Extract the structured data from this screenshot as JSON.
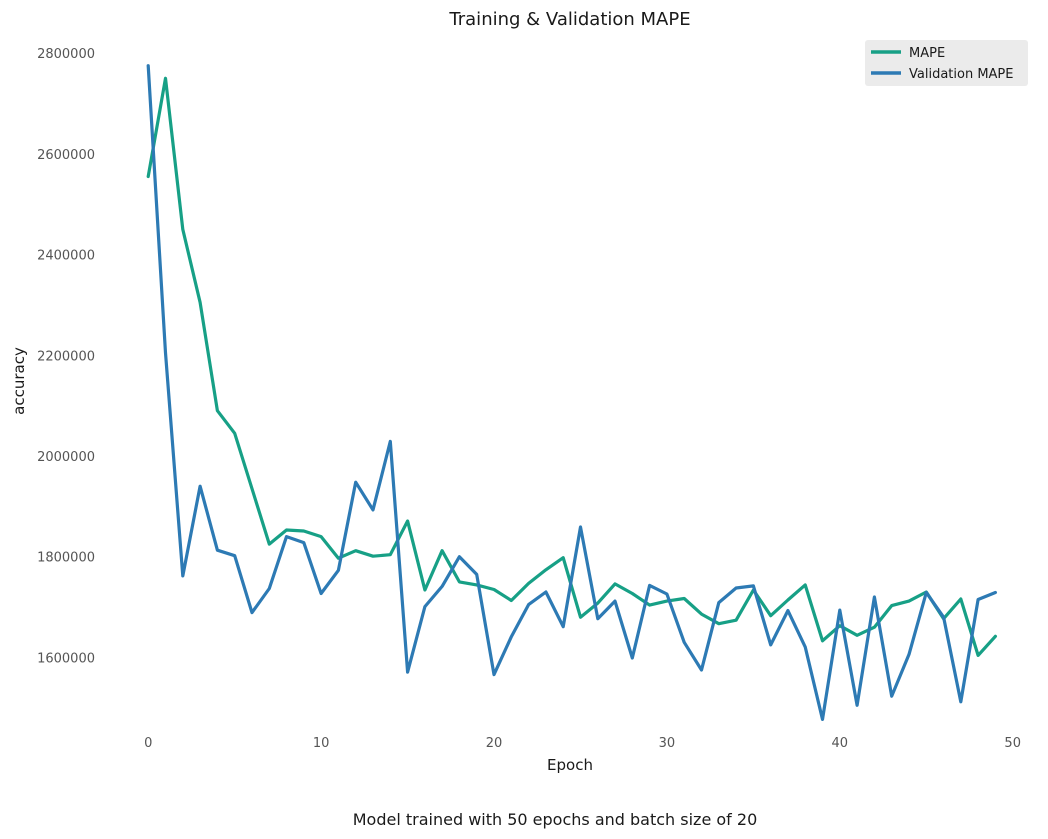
{
  "chart_data": {
    "type": "line",
    "title": "Training & Validation MAPE",
    "xlabel": "Epoch",
    "ylabel": "accuracy",
    "caption": "Model trained with 50 epochs and batch size of 20",
    "xlim": [
      -2.5,
      51
    ],
    "ylim": [
      1450000,
      2830000
    ],
    "xticks": [
      0,
      10,
      20,
      30,
      40,
      50
    ],
    "yticks": [
      1600000,
      1800000,
      2000000,
      2200000,
      2400000,
      2600000,
      2800000
    ],
    "grid": false,
    "legend_position": "top-right",
    "x": [
      0,
      1,
      2,
      3,
      4,
      5,
      6,
      7,
      8,
      9,
      10,
      11,
      12,
      13,
      14,
      15,
      16,
      17,
      18,
      19,
      20,
      21,
      22,
      23,
      24,
      25,
      26,
      27,
      28,
      29,
      30,
      31,
      32,
      33,
      34,
      35,
      36,
      37,
      38,
      39,
      40,
      41,
      42,
      43,
      44,
      45,
      46,
      47,
      48,
      49
    ],
    "series": [
      {
        "name": "MAPE",
        "color": "#17a086",
        "values": [
          2555000,
          2750000,
          2450000,
          2305000,
          2090000,
          2045000,
          1935000,
          1825000,
          1853000,
          1851000,
          1840000,
          1797000,
          1812000,
          1801000,
          1804000,
          1871000,
          1734000,
          1812000,
          1750000,
          1744000,
          1735000,
          1713000,
          1747000,
          1774000,
          1798000,
          1680000,
          1708000,
          1746000,
          1727000,
          1704000,
          1712000,
          1717000,
          1686000,
          1667000,
          1674000,
          1734000,
          1683000,
          1714000,
          1744000,
          1633000,
          1663000,
          1644000,
          1660000,
          1703000,
          1712000,
          1730000,
          1677000,
          1716000,
          1604000,
          1642000
        ]
      },
      {
        "name": "Validation MAPE",
        "color": "#2d7ab4",
        "values": [
          2775000,
          2205000,
          1762000,
          1940000,
          1813000,
          1802000,
          1689000,
          1737000,
          1840000,
          1828000,
          1727000,
          1773000,
          1948000,
          1893000,
          2029000,
          1571000,
          1701000,
          1741000,
          1800000,
          1765000,
          1566000,
          1641000,
          1705000,
          1730000,
          1661000,
          1859000,
          1677000,
          1712000,
          1599000,
          1743000,
          1726000,
          1630000,
          1575000,
          1709000,
          1738000,
          1742000,
          1625000,
          1693000,
          1621000,
          1477000,
          1694000,
          1505000,
          1720000,
          1523000,
          1606000,
          1729000,
          1680000,
          1512000,
          1715000,
          1729000
        ]
      }
    ]
  },
  "legend_bg": "#ebebeb"
}
